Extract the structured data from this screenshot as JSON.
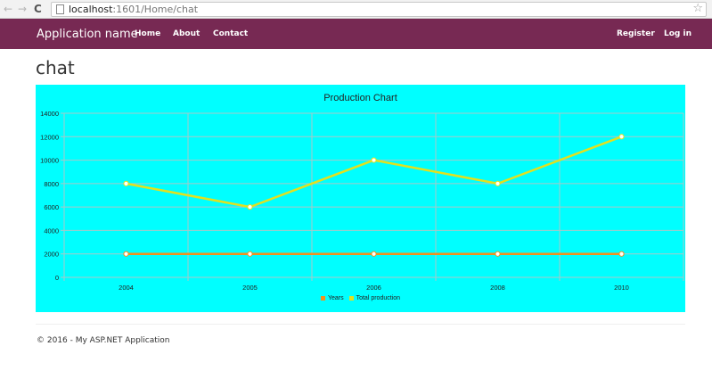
{
  "browser": {
    "back": "←",
    "forward": "→",
    "reload": "C",
    "url_host": "localhost",
    "url_rest": ":1601/Home/chat",
    "star": "☆"
  },
  "navbar": {
    "brand": "Application name",
    "links": [
      "Home",
      "About",
      "Contact"
    ],
    "right_links": [
      "Register",
      "Log in"
    ],
    "bg_color": "#772953"
  },
  "page": {
    "title": "chat"
  },
  "footer": {
    "text": "© 2016 - My ASP.NET Application"
  },
  "chart_data": {
    "type": "line",
    "title": "Production Chart",
    "categories": [
      "2004",
      "2005",
      "2006",
      "2008",
      "2010"
    ],
    "series": [
      {
        "name": "Years",
        "values": [
          2000,
          2000,
          2000,
          2000,
          2000
        ],
        "color": "#f28f1c"
      },
      {
        "name": "Total production",
        "values": [
          8000,
          6000,
          10000,
          8000,
          12000
        ],
        "color": "#e3e01e"
      }
    ],
    "ylim": [
      0,
      14000
    ],
    "yticks": [
      0,
      2000,
      4000,
      6000,
      8000,
      10000,
      12000,
      14000
    ],
    "xlabel": "",
    "ylabel": "",
    "grid": true,
    "legend_position": "bottom",
    "background": "#00ffff"
  }
}
